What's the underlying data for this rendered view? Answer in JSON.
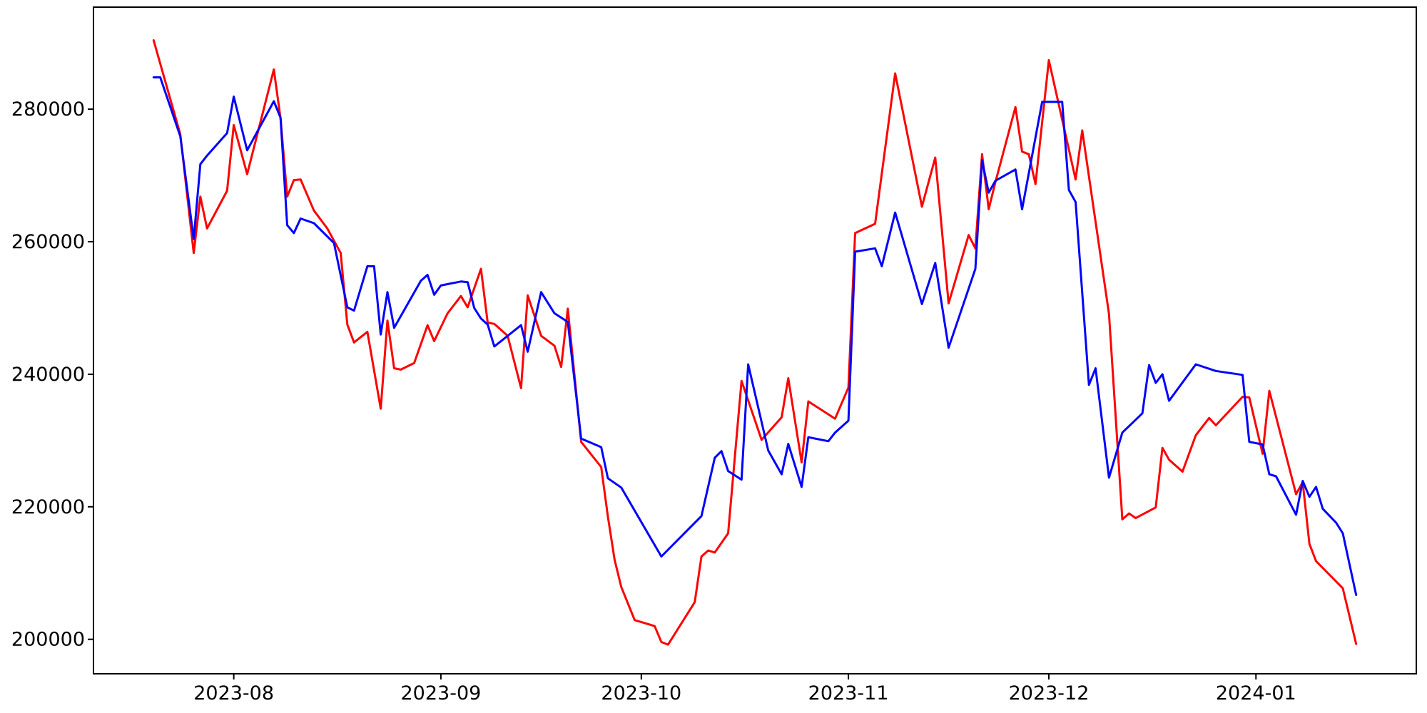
{
  "figure": {
    "background_color": "#ffffff",
    "spine_color": "#000000",
    "tick_color": "#000000",
    "label_color": "#000000"
  },
  "chart_data": {
    "type": "line",
    "title": "",
    "xlabel": "",
    "ylabel": "",
    "grid": false,
    "legend": null,
    "xlim": [
      "2023-07-11",
      "2024-01-25"
    ],
    "ylim": [
      194800,
      295400
    ],
    "x_ticks": [
      {
        "date": "2023-08-01",
        "label": "2023-08"
      },
      {
        "date": "2023-09-01",
        "label": "2023-09"
      },
      {
        "date": "2023-10-01",
        "label": "2023-10"
      },
      {
        "date": "2023-11-01",
        "label": "2023-11"
      },
      {
        "date": "2023-12-01",
        "label": "2023-12"
      },
      {
        "date": "2024-01-01",
        "label": "2024-01"
      }
    ],
    "y_ticks": [
      {
        "value": 200000,
        "label": "200000"
      },
      {
        "value": 220000,
        "label": "220000"
      },
      {
        "value": 240000,
        "label": "240000"
      },
      {
        "value": 260000,
        "label": "260000"
      },
      {
        "value": 280000,
        "label": "280000"
      }
    ],
    "series": [
      {
        "name": "red-series",
        "color": "#ff0000",
        "line_width": 3,
        "points": [
          [
            "2023-07-20",
            290400
          ],
          [
            "2023-07-24",
            276200
          ],
          [
            "2023-07-26",
            258300
          ],
          [
            "2023-07-27",
            266800
          ],
          [
            "2023-07-28",
            262000
          ],
          [
            "2023-07-31",
            267700
          ],
          [
            "2023-08-01",
            277600
          ],
          [
            "2023-08-03",
            270200
          ],
          [
            "2023-08-07",
            286000
          ],
          [
            "2023-08-08",
            278600
          ],
          [
            "2023-08-09",
            266800
          ],
          [
            "2023-08-10",
            269300
          ],
          [
            "2023-08-11",
            269400
          ],
          [
            "2023-08-13",
            264700
          ],
          [
            "2023-08-15",
            262000
          ],
          [
            "2023-08-17",
            258300
          ],
          [
            "2023-08-18",
            247500
          ],
          [
            "2023-08-19",
            244800
          ],
          [
            "2023-08-21",
            246400
          ],
          [
            "2023-08-23",
            234800
          ],
          [
            "2023-08-24",
            248100
          ],
          [
            "2023-08-25",
            240900
          ],
          [
            "2023-08-26",
            240700
          ],
          [
            "2023-08-28",
            241700
          ],
          [
            "2023-08-30",
            247400
          ],
          [
            "2023-08-31",
            245000
          ],
          [
            "2023-09-02",
            249200
          ],
          [
            "2023-09-04",
            251800
          ],
          [
            "2023-09-05",
            250100
          ],
          [
            "2023-09-07",
            255900
          ],
          [
            "2023-09-08",
            247800
          ],
          [
            "2023-09-09",
            247600
          ],
          [
            "2023-09-11",
            245800
          ],
          [
            "2023-09-13",
            237900
          ],
          [
            "2023-09-14",
            251900
          ],
          [
            "2023-09-16",
            245800
          ],
          [
            "2023-09-18",
            244300
          ],
          [
            "2023-09-19",
            241100
          ],
          [
            "2023-09-20",
            249900
          ],
          [
            "2023-09-22",
            229800
          ],
          [
            "2023-09-25",
            226000
          ],
          [
            "2023-09-26",
            218500
          ],
          [
            "2023-09-27",
            212000
          ],
          [
            "2023-09-28",
            207900
          ],
          [
            "2023-09-30",
            202900
          ],
          [
            "2023-10-03",
            202000
          ],
          [
            "2023-10-04",
            199600
          ],
          [
            "2023-10-05",
            199200
          ],
          [
            "2023-10-09",
            205600
          ],
          [
            "2023-10-10",
            212500
          ],
          [
            "2023-10-11",
            213400
          ],
          [
            "2023-10-12",
            213100
          ],
          [
            "2023-10-14",
            216000
          ],
          [
            "2023-10-16",
            239000
          ],
          [
            "2023-10-19",
            230100
          ],
          [
            "2023-10-22",
            233500
          ],
          [
            "2023-10-23",
            239400
          ],
          [
            "2023-10-25",
            226700
          ],
          [
            "2023-10-26",
            235900
          ],
          [
            "2023-10-30",
            233300
          ],
          [
            "2023-11-01",
            238000
          ],
          [
            "2023-11-02",
            261300
          ],
          [
            "2023-11-05",
            262700
          ],
          [
            "2023-11-08",
            285400
          ],
          [
            "2023-11-12",
            265300
          ],
          [
            "2023-11-14",
            272700
          ],
          [
            "2023-11-16",
            250700
          ],
          [
            "2023-11-19",
            261000
          ],
          [
            "2023-11-20",
            259000
          ],
          [
            "2023-11-21",
            273200
          ],
          [
            "2023-11-22",
            264900
          ],
          [
            "2023-11-23",
            269000
          ],
          [
            "2023-11-26",
            280300
          ],
          [
            "2023-11-27",
            273600
          ],
          [
            "2023-11-28",
            273200
          ],
          [
            "2023-11-29",
            268700
          ],
          [
            "2023-12-01",
            287400
          ],
          [
            "2023-12-05",
            269400
          ],
          [
            "2023-12-06",
            276800
          ],
          [
            "2023-12-10",
            249100
          ],
          [
            "2023-12-12",
            218100
          ],
          [
            "2023-12-13",
            219000
          ],
          [
            "2023-12-14",
            218300
          ],
          [
            "2023-12-17",
            219900
          ],
          [
            "2023-12-18",
            228900
          ],
          [
            "2023-12-19",
            227100
          ],
          [
            "2023-12-21",
            225300
          ],
          [
            "2023-12-23",
            230800
          ],
          [
            "2023-12-25",
            233400
          ],
          [
            "2023-12-26",
            232300
          ],
          [
            "2023-12-30",
            236600
          ],
          [
            "2023-12-31",
            236500
          ],
          [
            "2024-01-02",
            228000
          ],
          [
            "2024-01-03",
            237500
          ],
          [
            "2024-01-07",
            221900
          ],
          [
            "2024-01-08",
            223700
          ],
          [
            "2024-01-09",
            214400
          ],
          [
            "2024-01-10",
            211800
          ],
          [
            "2024-01-14",
            207700
          ],
          [
            "2024-01-16",
            199300
          ]
        ]
      },
      {
        "name": "blue-series",
        "color": "#0000ff",
        "line_width": 3,
        "points": [
          [
            "2023-07-20",
            284800
          ],
          [
            "2023-07-21",
            284800
          ],
          [
            "2023-07-24",
            275900
          ],
          [
            "2023-07-26",
            260400
          ],
          [
            "2023-07-27",
            271700
          ],
          [
            "2023-07-28",
            273000
          ],
          [
            "2023-07-31",
            276400
          ],
          [
            "2023-08-01",
            281900
          ],
          [
            "2023-08-03",
            273800
          ],
          [
            "2023-08-07",
            281200
          ],
          [
            "2023-08-08",
            278700
          ],
          [
            "2023-08-09",
            262500
          ],
          [
            "2023-08-10",
            261300
          ],
          [
            "2023-08-11",
            263500
          ],
          [
            "2023-08-13",
            262800
          ],
          [
            "2023-08-16",
            259800
          ],
          [
            "2023-08-18",
            250100
          ],
          [
            "2023-08-19",
            249600
          ],
          [
            "2023-08-21",
            256300
          ],
          [
            "2023-08-22",
            256300
          ],
          [
            "2023-08-23",
            246000
          ],
          [
            "2023-08-24",
            252400
          ],
          [
            "2023-08-25",
            247000
          ],
          [
            "2023-08-29",
            254100
          ],
          [
            "2023-08-30",
            255000
          ],
          [
            "2023-08-31",
            252000
          ],
          [
            "2023-09-01",
            253400
          ],
          [
            "2023-09-02",
            253600
          ],
          [
            "2023-09-04",
            254000
          ],
          [
            "2023-09-05",
            253900
          ],
          [
            "2023-09-06",
            250000
          ],
          [
            "2023-09-07",
            248400
          ],
          [
            "2023-09-08",
            247500
          ],
          [
            "2023-09-09",
            244200
          ],
          [
            "2023-09-13",
            247400
          ],
          [
            "2023-09-14",
            243400
          ],
          [
            "2023-09-16",
            252400
          ],
          [
            "2023-09-18",
            249200
          ],
          [
            "2023-09-20",
            247900
          ],
          [
            "2023-09-22",
            230300
          ],
          [
            "2023-09-25",
            229000
          ],
          [
            "2023-09-26",
            224300
          ],
          [
            "2023-09-28",
            222900
          ],
          [
            "2023-10-04",
            212500
          ],
          [
            "2023-10-10",
            218600
          ],
          [
            "2023-10-12",
            227400
          ],
          [
            "2023-10-13",
            228400
          ],
          [
            "2023-10-14",
            225400
          ],
          [
            "2023-10-16",
            224100
          ],
          [
            "2023-10-17",
            241500
          ],
          [
            "2023-10-20",
            228500
          ],
          [
            "2023-10-22",
            224900
          ],
          [
            "2023-10-23",
            229500
          ],
          [
            "2023-10-25",
            223000
          ],
          [
            "2023-10-26",
            230500
          ],
          [
            "2023-10-29",
            229900
          ],
          [
            "2023-10-30",
            231200
          ],
          [
            "2023-11-01",
            233000
          ],
          [
            "2023-11-02",
            258500
          ],
          [
            "2023-11-05",
            259000
          ],
          [
            "2023-11-06",
            256300
          ],
          [
            "2023-11-08",
            264400
          ],
          [
            "2023-11-12",
            250600
          ],
          [
            "2023-11-14",
            256800
          ],
          [
            "2023-11-16",
            244000
          ],
          [
            "2023-11-20",
            255900
          ],
          [
            "2023-11-21",
            272300
          ],
          [
            "2023-11-22",
            267400
          ],
          [
            "2023-11-23",
            269200
          ],
          [
            "2023-11-26",
            270900
          ],
          [
            "2023-11-27",
            264900
          ],
          [
            "2023-11-30",
            281100
          ],
          [
            "2023-12-03",
            281100
          ],
          [
            "2023-12-04",
            267800
          ],
          [
            "2023-12-05",
            266000
          ],
          [
            "2023-12-07",
            238400
          ],
          [
            "2023-12-08",
            240900
          ],
          [
            "2023-12-10",
            224400
          ],
          [
            "2023-12-12",
            231200
          ],
          [
            "2023-12-15",
            234100
          ],
          [
            "2023-12-16",
            241400
          ],
          [
            "2023-12-17",
            238700
          ],
          [
            "2023-12-18",
            240000
          ],
          [
            "2023-12-19",
            236000
          ],
          [
            "2023-12-23",
            241500
          ],
          [
            "2023-12-26",
            240500
          ],
          [
            "2023-12-30",
            239900
          ],
          [
            "2023-12-31",
            229800
          ],
          [
            "2024-01-02",
            229400
          ],
          [
            "2024-01-03",
            224900
          ],
          [
            "2024-01-04",
            224600
          ],
          [
            "2024-01-07",
            218800
          ],
          [
            "2024-01-08",
            223900
          ],
          [
            "2024-01-09",
            221500
          ],
          [
            "2024-01-10",
            223000
          ],
          [
            "2024-01-11",
            219700
          ],
          [
            "2024-01-13",
            217600
          ],
          [
            "2024-01-14",
            216000
          ],
          [
            "2024-01-16",
            206700
          ]
        ]
      }
    ]
  }
}
